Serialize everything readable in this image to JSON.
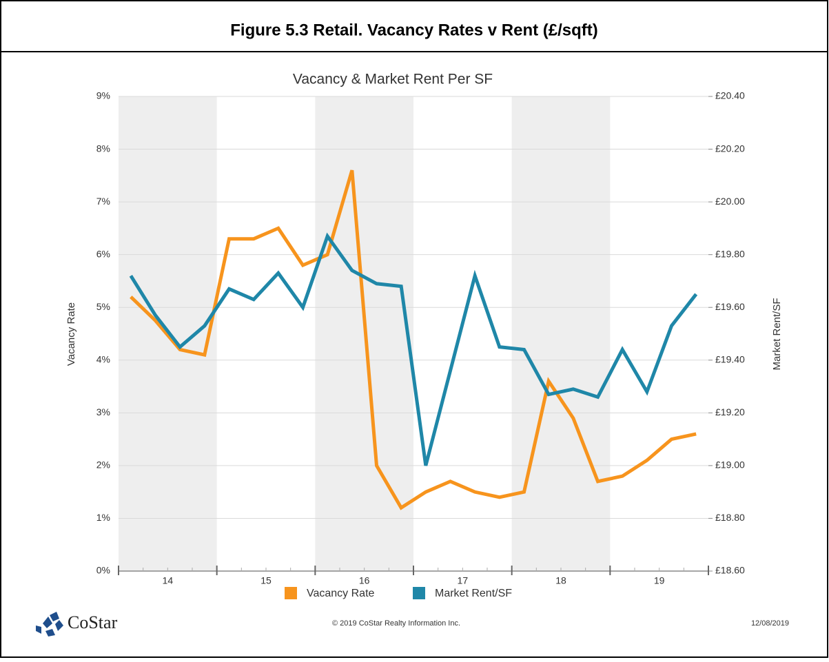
{
  "header": {
    "title": "Figure 5.3  Retail. Vacancy Rates v Rent (£/sqft)"
  },
  "chart_data": {
    "type": "line",
    "title": "Vacancy & Market Rent Per SF",
    "categories": [
      null,
      null,
      null,
      null,
      null,
      null,
      null,
      null,
      null,
      null,
      null,
      null,
      null,
      null,
      null,
      null,
      null,
      null,
      null,
      null,
      null,
      null,
      null,
      null
    ],
    "year_labels": [
      "14",
      "15",
      "16",
      "17",
      "18",
      "19"
    ],
    "series": [
      {
        "name": "Vacancy Rate",
        "color": "#f7941d",
        "values": [
          5.2,
          4.75,
          4.2,
          4.1,
          6.3,
          6.3,
          6.5,
          5.8,
          6.0,
          7.6,
          2.0,
          1.2,
          1.5,
          1.7,
          1.5,
          1.4,
          1.5,
          3.6,
          2.9,
          1.7,
          1.8,
          2.1,
          2.5,
          2.6
        ]
      },
      {
        "name": "Market Rent/SF",
        "color": "#1f87a8",
        "axis": "y2",
        "values": [
          19.72,
          19.57,
          19.45,
          19.53,
          19.67,
          19.63,
          19.73,
          19.6,
          19.87,
          19.74,
          19.69,
          19.68,
          19.0,
          19.36,
          19.72,
          19.45,
          19.44,
          19.27,
          19.29,
          19.26,
          19.44,
          19.28,
          19.53,
          19.65
        ]
      }
    ],
    "ylabel": "Vacancy Rate",
    "y2label": "Market Rent/SF",
    "ylim": [
      0,
      9
    ],
    "yticks": [
      {
        "value": 0,
        "label": "0%"
      },
      {
        "value": 1,
        "label": "1%"
      },
      {
        "value": 2,
        "label": "2%"
      },
      {
        "value": 3,
        "label": "3%"
      },
      {
        "value": 4,
        "label": "4%"
      },
      {
        "value": 5,
        "label": "5%"
      },
      {
        "value": 6,
        "label": "6%"
      },
      {
        "value": 7,
        "label": "7%"
      },
      {
        "value": 8,
        "label": "8%"
      },
      {
        "value": 9,
        "label": "9%"
      }
    ],
    "y2lim": [
      18.6,
      20.4
    ],
    "y2ticks": [
      {
        "value": 18.6,
        "label": "£18.60"
      },
      {
        "value": 18.8,
        "label": "£18.80"
      },
      {
        "value": 19.0,
        "label": "£19.00"
      },
      {
        "value": 19.2,
        "label": "£19.20"
      },
      {
        "value": 19.4,
        "label": "£19.40"
      },
      {
        "value": 19.6,
        "label": "£19.60"
      },
      {
        "value": 19.8,
        "label": "£19.80"
      },
      {
        "value": 20.0,
        "label": "£20.00"
      },
      {
        "value": 20.2,
        "label": "£20.20"
      },
      {
        "value": 20.4,
        "label": "£20.40"
      }
    ],
    "grid": true,
    "legend": "bottom"
  },
  "footer": {
    "brand": "CoStar",
    "copyright": "© 2019 CoStar Realty Information Inc.",
    "date": "12/08/2019"
  }
}
